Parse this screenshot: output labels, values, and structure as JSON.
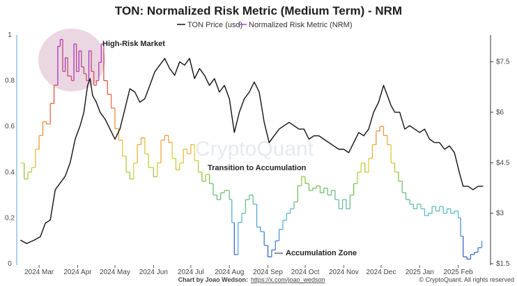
{
  "chart_data": {
    "type": "line",
    "title": "TON: Normalized Risk Metric (Medium Term) - NRM",
    "legend": [
      "TON Price (usd)",
      "Normalized Risk Metric (NRM)"
    ],
    "legend_position": "top",
    "x_ticks": [
      "2024 Mar",
      "2024 Apr",
      "2024 May",
      "2024 Jun",
      "2024 Jul",
      "2024 Aug",
      "2024 Sep",
      "2024 Oct",
      "2024 Nov",
      "2024 Dec",
      "2025 Jan",
      "2025 Feb"
    ],
    "y_left_ticks": [
      "0",
      "0.2",
      "0.4",
      "0.6",
      "0.8",
      "1"
    ],
    "y_left_range": [
      0,
      1
    ],
    "y_right_ticks": [
      "$1.5",
      "$3",
      "$4.5",
      "$6",
      "$7.5"
    ],
    "y_right_range": [
      1.5,
      8.3
    ],
    "grid": false,
    "series": [
      {
        "name": "TON Price (usd)",
        "color": "#111111",
        "points": [
          [
            "2024-02-15",
            2.2
          ],
          [
            "2024-02-20",
            2.1
          ],
          [
            "2024-02-26",
            2.2
          ],
          [
            "2024-03-02",
            2.3
          ],
          [
            "2024-03-06",
            2.7
          ],
          [
            "2024-03-10",
            2.8
          ],
          [
            "2024-03-14",
            3.7
          ],
          [
            "2024-03-18",
            3.9
          ],
          [
            "2024-03-22",
            4.1
          ],
          [
            "2024-03-26",
            4.5
          ],
          [
            "2024-03-30",
            5.2
          ],
          [
            "2024-04-03",
            5.6
          ],
          [
            "2024-04-06",
            6.0
          ],
          [
            "2024-04-09",
            6.8
          ],
          [
            "2024-04-11",
            7.0
          ],
          [
            "2024-04-13",
            6.5
          ],
          [
            "2024-04-16",
            6.3
          ],
          [
            "2024-04-19",
            6.0
          ],
          [
            "2024-04-23",
            5.8
          ],
          [
            "2024-04-27",
            5.5
          ],
          [
            "2024-05-01",
            5.2
          ],
          [
            "2024-05-05",
            5.5
          ],
          [
            "2024-05-09",
            6.1
          ],
          [
            "2024-05-13",
            6.7
          ],
          [
            "2024-05-17",
            6.6
          ],
          [
            "2024-05-21",
            6.3
          ],
          [
            "2024-05-25",
            6.4
          ],
          [
            "2024-05-29",
            6.8
          ],
          [
            "2024-06-02",
            7.2
          ],
          [
            "2024-06-06",
            7.4
          ],
          [
            "2024-06-10",
            7.6
          ],
          [
            "2024-06-14",
            7.3
          ],
          [
            "2024-06-18",
            7.1
          ],
          [
            "2024-06-22",
            7.5
          ],
          [
            "2024-06-26",
            7.4
          ],
          [
            "2024-06-30",
            7.6
          ],
          [
            "2024-07-04",
            7.0
          ],
          [
            "2024-07-08",
            7.3
          ],
          [
            "2024-07-12",
            7.1
          ],
          [
            "2024-07-16",
            6.8
          ],
          [
            "2024-07-20",
            7.0
          ],
          [
            "2024-07-24",
            6.6
          ],
          [
            "2024-07-28",
            6.8
          ],
          [
            "2024-08-01",
            6.4
          ],
          [
            "2024-08-05",
            5.4
          ],
          [
            "2024-08-09",
            6.0
          ],
          [
            "2024-08-13",
            6.4
          ],
          [
            "2024-08-17",
            6.6
          ],
          [
            "2024-08-21",
            6.9
          ],
          [
            "2024-08-25",
            6.6
          ],
          [
            "2024-08-29",
            5.7
          ],
          [
            "2024-09-02",
            5.1
          ],
          [
            "2024-09-06",
            5.3
          ],
          [
            "2024-09-10",
            5.5
          ],
          [
            "2024-09-14",
            5.6
          ],
          [
            "2024-09-18",
            5.7
          ],
          [
            "2024-09-22",
            5.6
          ],
          [
            "2024-09-26",
            5.5
          ],
          [
            "2024-09-30",
            5.5
          ],
          [
            "2024-10-04",
            5.2
          ],
          [
            "2024-10-08",
            5.3
          ],
          [
            "2024-10-12",
            5.3
          ],
          [
            "2024-10-16",
            5.2
          ],
          [
            "2024-10-20",
            5.1
          ],
          [
            "2024-10-24",
            5.0
          ],
          [
            "2024-10-28",
            4.9
          ],
          [
            "2024-11-01",
            4.9
          ],
          [
            "2024-11-05",
            4.8
          ],
          [
            "2024-11-09",
            5.1
          ],
          [
            "2024-11-13",
            5.4
          ],
          [
            "2024-11-17",
            5.3
          ],
          [
            "2024-11-21",
            5.5
          ],
          [
            "2024-11-25",
            6.0
          ],
          [
            "2024-11-29",
            6.3
          ],
          [
            "2024-12-03",
            6.8
          ],
          [
            "2024-12-06",
            6.5
          ],
          [
            "2024-12-09",
            6.2
          ],
          [
            "2024-12-12",
            6.0
          ],
          [
            "2024-12-16",
            6.0
          ],
          [
            "2024-12-20",
            5.5
          ],
          [
            "2024-12-24",
            5.6
          ],
          [
            "2024-12-28",
            5.5
          ],
          [
            "2025-01-01",
            5.4
          ],
          [
            "2025-01-05",
            5.5
          ],
          [
            "2025-01-09",
            5.2
          ],
          [
            "2025-01-13",
            5.1
          ],
          [
            "2025-01-17",
            5.1
          ],
          [
            "2025-01-21",
            4.9
          ],
          [
            "2025-01-25",
            5.0
          ],
          [
            "2025-01-29",
            4.8
          ],
          [
            "2025-02-02",
            4.2
          ],
          [
            "2025-02-05",
            3.8
          ],
          [
            "2025-02-09",
            3.8
          ],
          [
            "2025-02-13",
            3.7
          ],
          [
            "2025-02-17",
            3.8
          ],
          [
            "2025-02-21",
            3.8
          ]
        ]
      },
      {
        "name": "Normalized Risk Metric (NRM)",
        "color_scale": [
          [
            0.0,
            "#3557c8"
          ],
          [
            0.2,
            "#57b7d8"
          ],
          [
            0.35,
            "#7cc24e"
          ],
          [
            0.45,
            "#e3cf3a"
          ],
          [
            0.6,
            "#f08a3c"
          ],
          [
            0.78,
            "#e0504a"
          ],
          [
            0.9,
            "#a23ab8"
          ],
          [
            1.0,
            "#b22fd8"
          ]
        ],
        "points": [
          [
            "2024-02-15",
            0.44
          ],
          [
            "2024-02-18",
            0.37
          ],
          [
            "2024-02-21",
            0.4
          ],
          [
            "2024-02-24",
            0.42
          ],
          [
            "2024-02-27",
            0.5
          ],
          [
            "2024-03-01",
            0.56
          ],
          [
            "2024-03-04",
            0.62
          ],
          [
            "2024-03-07",
            0.61
          ],
          [
            "2024-03-10",
            0.7
          ],
          [
            "2024-03-13",
            0.78
          ],
          [
            "2024-03-16",
            0.95
          ],
          [
            "2024-03-18",
            0.98
          ],
          [
            "2024-03-20",
            0.84
          ],
          [
            "2024-03-22",
            0.9
          ],
          [
            "2024-03-24",
            0.82
          ],
          [
            "2024-03-27",
            0.8
          ],
          [
            "2024-03-29",
            0.96
          ],
          [
            "2024-03-31",
            0.84
          ],
          [
            "2024-04-02",
            0.93
          ],
          [
            "2024-04-04",
            0.86
          ],
          [
            "2024-04-06",
            0.83
          ],
          [
            "2024-04-08",
            0.8
          ],
          [
            "2024-04-10",
            0.93
          ],
          [
            "2024-04-12",
            0.84
          ],
          [
            "2024-04-14",
            0.78
          ],
          [
            "2024-04-16",
            0.8
          ],
          [
            "2024-04-18",
            0.88
          ],
          [
            "2024-04-20",
            0.96
          ],
          [
            "2024-04-22",
            0.8
          ],
          [
            "2024-04-25",
            0.74
          ],
          [
            "2024-04-28",
            0.68
          ],
          [
            "2024-05-01",
            0.59
          ],
          [
            "2024-05-04",
            0.54
          ],
          [
            "2024-05-07",
            0.47
          ],
          [
            "2024-05-10",
            0.4
          ],
          [
            "2024-05-13",
            0.37
          ],
          [
            "2024-05-16",
            0.44
          ],
          [
            "2024-05-19",
            0.52
          ],
          [
            "2024-05-22",
            0.55
          ],
          [
            "2024-05-25",
            0.48
          ],
          [
            "2024-05-28",
            0.42
          ],
          [
            "2024-06-01",
            0.38
          ],
          [
            "2024-06-04",
            0.44
          ],
          [
            "2024-06-07",
            0.54
          ],
          [
            "2024-06-10",
            0.56
          ],
          [
            "2024-06-13",
            0.53
          ],
          [
            "2024-06-16",
            0.46
          ],
          [
            "2024-06-19",
            0.41
          ],
          [
            "2024-06-22",
            0.44
          ],
          [
            "2024-06-25",
            0.5
          ],
          [
            "2024-06-28",
            0.48
          ],
          [
            "2024-07-01",
            0.52
          ],
          [
            "2024-07-04",
            0.45
          ],
          [
            "2024-07-07",
            0.4
          ],
          [
            "2024-07-10",
            0.36
          ],
          [
            "2024-07-13",
            0.39
          ],
          [
            "2024-07-16",
            0.35
          ],
          [
            "2024-07-19",
            0.3
          ],
          [
            "2024-07-22",
            0.28
          ],
          [
            "2024-07-25",
            0.31
          ],
          [
            "2024-07-28",
            0.32
          ],
          [
            "2024-08-01",
            0.28
          ],
          [
            "2024-08-03",
            0.18
          ],
          [
            "2024-08-05",
            0.04
          ],
          [
            "2024-08-08",
            0.18
          ],
          [
            "2024-08-11",
            0.22
          ],
          [
            "2024-08-14",
            0.28
          ],
          [
            "2024-08-17",
            0.3
          ],
          [
            "2024-08-20",
            0.26
          ],
          [
            "2024-08-23",
            0.16
          ],
          [
            "2024-08-26",
            0.14
          ],
          [
            "2024-08-29",
            0.08
          ],
          [
            "2024-09-01",
            0.03
          ],
          [
            "2024-09-04",
            0.06
          ],
          [
            "2024-09-07",
            0.1
          ],
          [
            "2024-09-10",
            0.15
          ],
          [
            "2024-09-13",
            0.19
          ],
          [
            "2024-09-16",
            0.22
          ],
          [
            "2024-09-19",
            0.24
          ],
          [
            "2024-09-22",
            0.27
          ],
          [
            "2024-09-25",
            0.34
          ],
          [
            "2024-09-28",
            0.38
          ],
          [
            "2024-10-01",
            0.35
          ],
          [
            "2024-10-04",
            0.32
          ],
          [
            "2024-10-07",
            0.33
          ],
          [
            "2024-10-10",
            0.34
          ],
          [
            "2024-10-13",
            0.31
          ],
          [
            "2024-10-16",
            0.33
          ],
          [
            "2024-10-19",
            0.3
          ],
          [
            "2024-10-22",
            0.32
          ],
          [
            "2024-10-25",
            0.28
          ],
          [
            "2024-10-28",
            0.24
          ],
          [
            "2024-10-31",
            0.28
          ],
          [
            "2024-11-03",
            0.24
          ],
          [
            "2024-11-06",
            0.3
          ],
          [
            "2024-11-09",
            0.35
          ],
          [
            "2024-11-12",
            0.4
          ],
          [
            "2024-11-15",
            0.44
          ],
          [
            "2024-11-18",
            0.4
          ],
          [
            "2024-11-21",
            0.46
          ],
          [
            "2024-11-24",
            0.52
          ],
          [
            "2024-11-27",
            0.58
          ],
          [
            "2024-11-30",
            0.6
          ],
          [
            "2024-12-03",
            0.56
          ],
          [
            "2024-12-06",
            0.52
          ],
          [
            "2024-12-09",
            0.44
          ],
          [
            "2024-12-12",
            0.4
          ],
          [
            "2024-12-15",
            0.36
          ],
          [
            "2024-12-18",
            0.31
          ],
          [
            "2024-12-21",
            0.28
          ],
          [
            "2024-12-24",
            0.26
          ],
          [
            "2024-12-27",
            0.24
          ],
          [
            "2024-12-30",
            0.26
          ],
          [
            "2025-01-02",
            0.24
          ],
          [
            "2025-01-05",
            0.21
          ],
          [
            "2025-01-08",
            0.22
          ],
          [
            "2025-01-11",
            0.25
          ],
          [
            "2025-01-14",
            0.23
          ],
          [
            "2025-01-17",
            0.25
          ],
          [
            "2025-01-20",
            0.22
          ],
          [
            "2025-01-23",
            0.24
          ],
          [
            "2025-01-26",
            0.22
          ],
          [
            "2025-01-29",
            0.23
          ],
          [
            "2025-02-01",
            0.2
          ],
          [
            "2025-02-03",
            0.12
          ],
          [
            "2025-02-05",
            0.03
          ],
          [
            "2025-02-08",
            0.02
          ],
          [
            "2025-02-11",
            0.04
          ],
          [
            "2025-02-14",
            0.05
          ],
          [
            "2025-02-17",
            0.07
          ],
          [
            "2025-02-20",
            0.1
          ]
        ]
      }
    ],
    "annotations": [
      "High-Risk Market",
      "Transition to Accumulation",
      "Accumulation Zone"
    ],
    "watermark": "CryptoQuant",
    "footer": {
      "credit": "Chart by Joao Wedson:",
      "link": "https://x.com/joao_wedson",
      "copyright": "© CryptoQuant. All rights reserved"
    }
  }
}
